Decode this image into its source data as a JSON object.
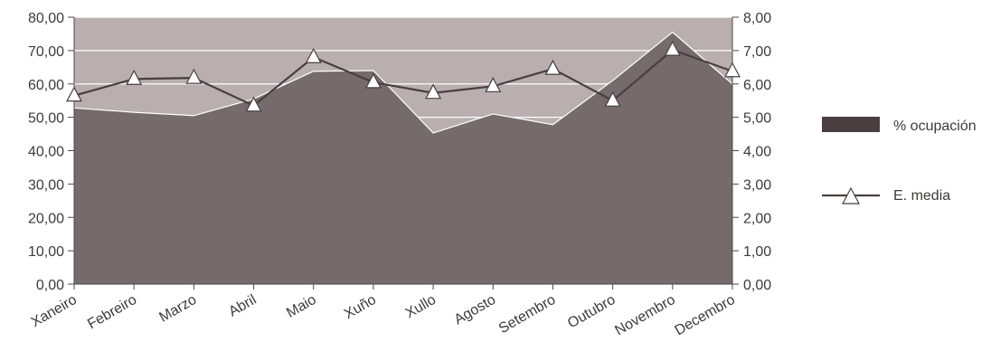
{
  "chart_data": {
    "type": "area",
    "categories": [
      "Xaneiro",
      "Febreiro",
      "Marzo",
      "Abril",
      "Maio",
      "Xuño",
      "Xullo",
      "Agosto",
      "Setembro",
      "Outubro",
      "Novembro",
      "Decembro"
    ],
    "series": [
      {
        "name": "% ocupación",
        "type": "area",
        "axis": "left",
        "color": "#766b6c",
        "values": [
          52.8,
          51.5,
          50.5,
          55.5,
          63.8,
          64.0,
          45.3,
          51.0,
          47.8,
          61.0,
          75.5,
          60.0
        ]
      },
      {
        "name": "E. media",
        "type": "line",
        "axis": "right",
        "color": "#4a3f40",
        "marker": "triangle",
        "values": [
          5.65,
          6.15,
          6.18,
          5.35,
          6.8,
          6.05,
          5.73,
          5.93,
          6.45,
          5.5,
          7.02,
          6.38
        ]
      }
    ],
    "left_axis": {
      "ylim": [
        0,
        80
      ],
      "ticks": [
        "0,00",
        "10,00",
        "20,00",
        "30,00",
        "40,00",
        "50,00",
        "60,00",
        "70,00",
        "80,00"
      ]
    },
    "right_axis": {
      "ylim": [
        0,
        8
      ],
      "ticks": [
        "0,00",
        "1,00",
        "2,00",
        "3,00",
        "4,00",
        "5,00",
        "6,00",
        "7,00",
        "8,00"
      ]
    },
    "grid": true,
    "plot_background": "#b9afb0",
    "legend_position": "right"
  }
}
